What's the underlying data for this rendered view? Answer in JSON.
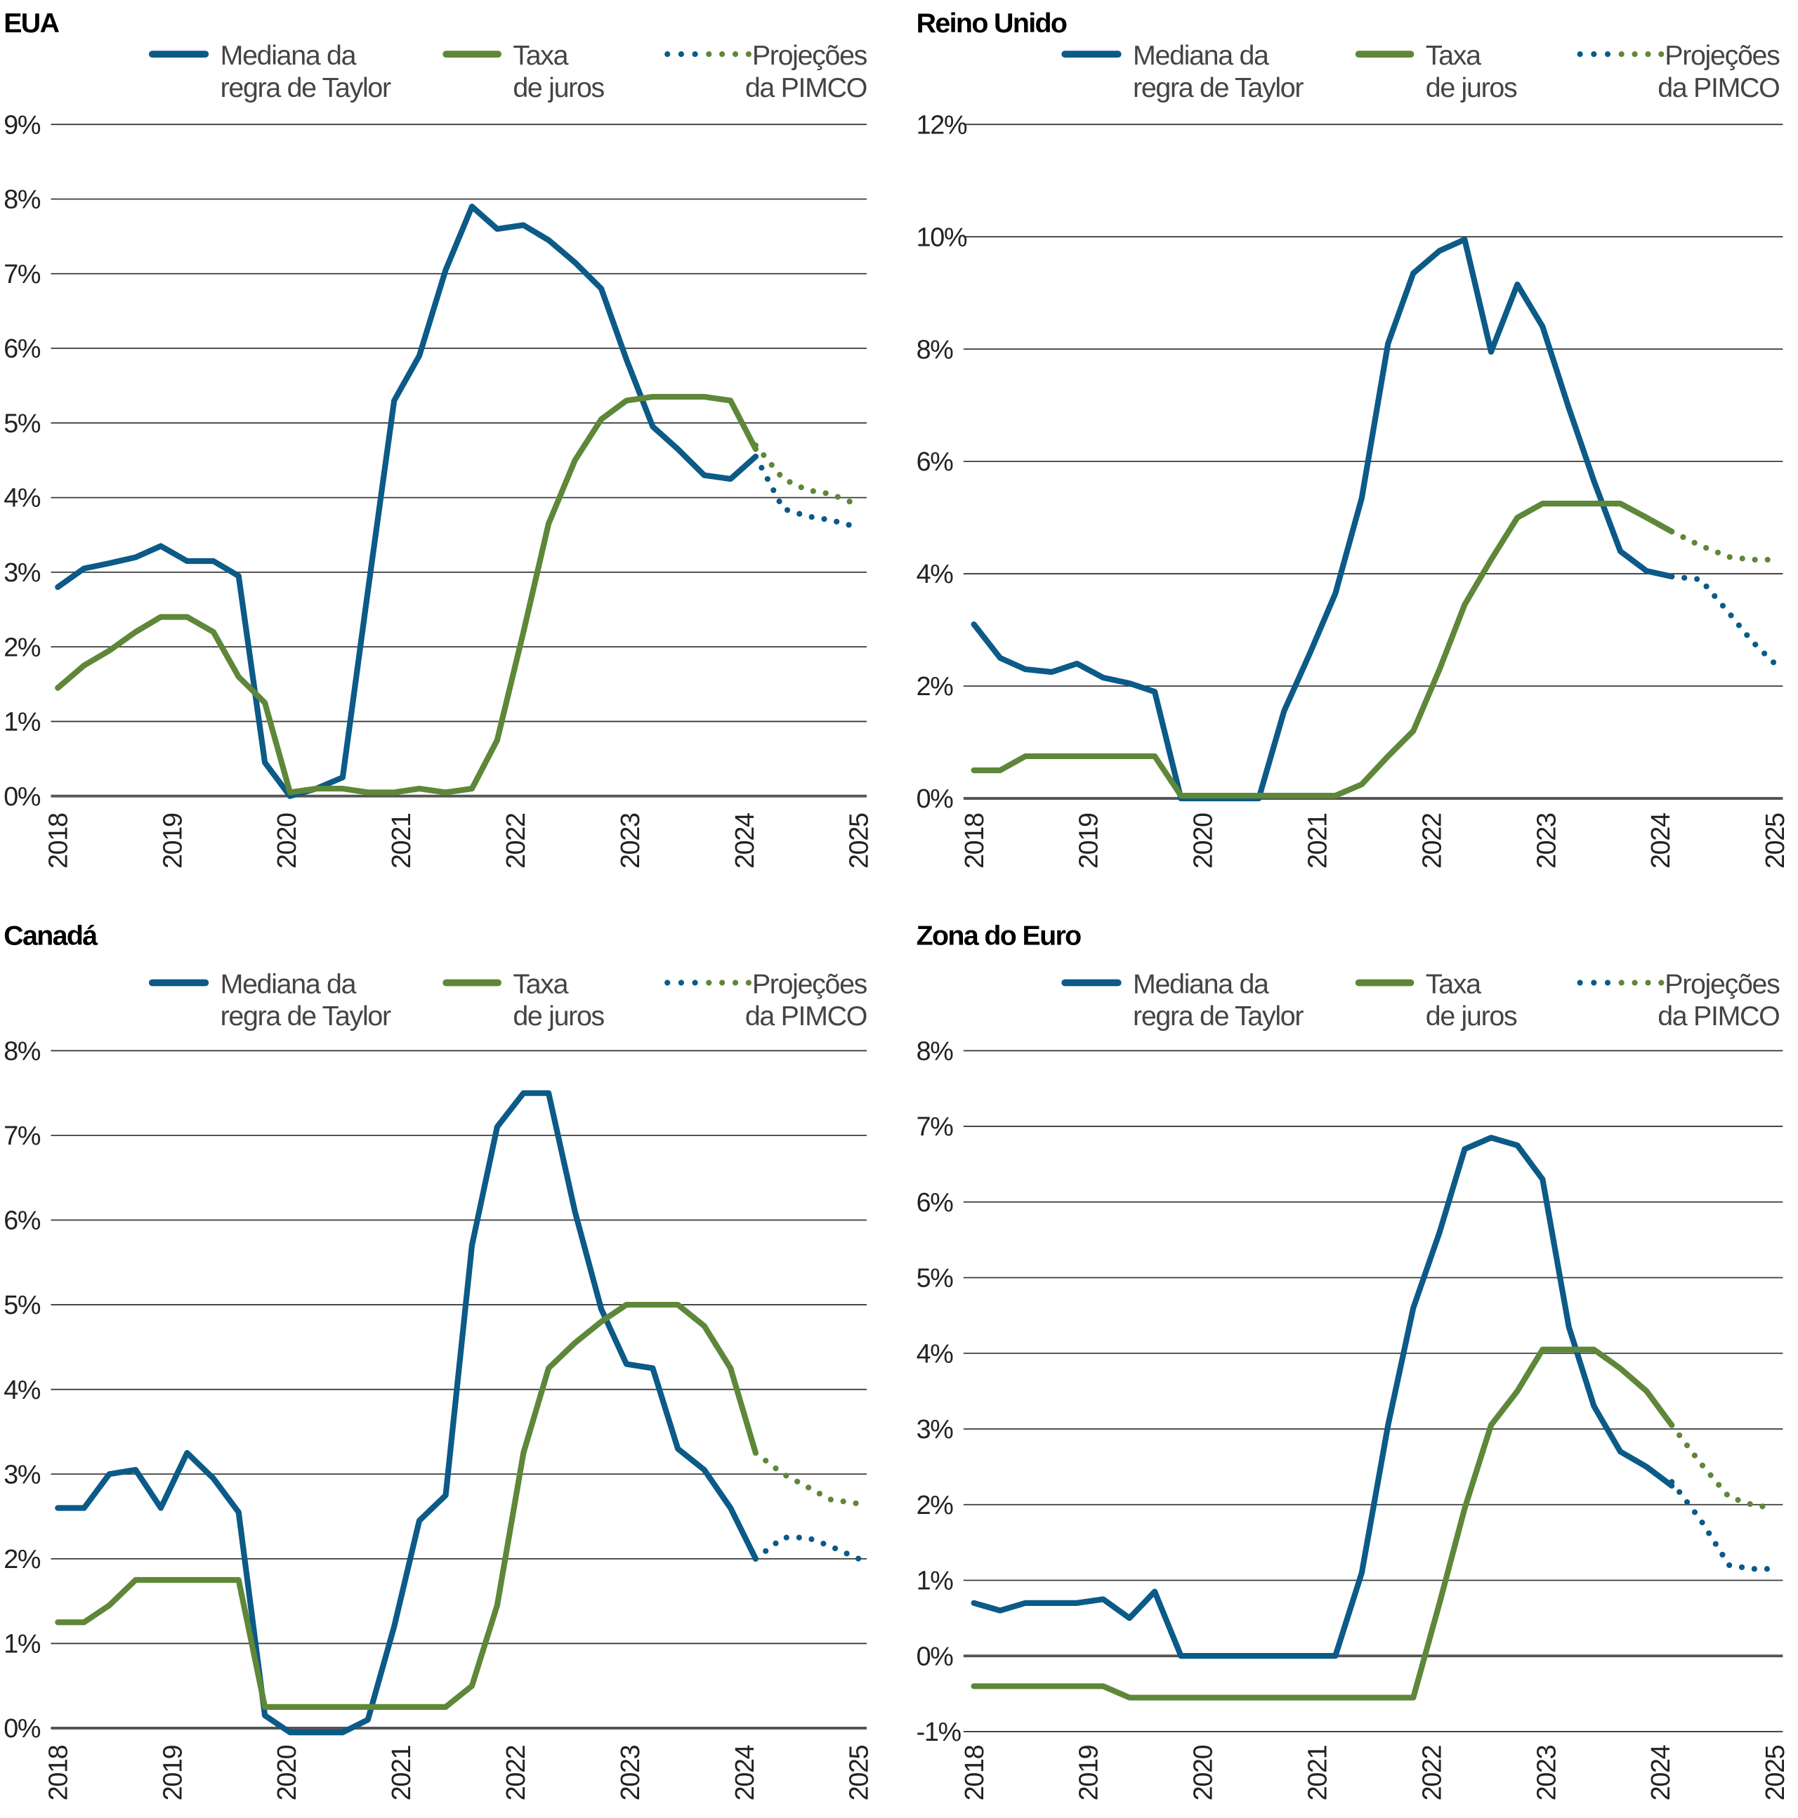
{
  "colors": {
    "taylor": "#0b5a87",
    "rate": "#5e8739",
    "grid": "#3a3a3a",
    "zero": "#555555"
  },
  "legend": [
    {
      "lines": [
        "Mediana da",
        "regra de Taylor"
      ],
      "style": "solid",
      "color": "#0b5a87"
    },
    {
      "lines": [
        "Taxa",
        "de juros"
      ],
      "style": "solid",
      "color": "#5e8739"
    },
    {
      "lines": [
        "Projeções",
        "da PIMCO"
      ],
      "style": "dotted",
      "color": "mixed"
    }
  ],
  "chart_data": [
    {
      "type": "line",
      "title": "EUA",
      "xlim": [
        2018,
        2025
      ],
      "xticks": [
        "2018",
        "2019",
        "2020",
        "2021",
        "2022",
        "2023",
        "2024",
        "2025"
      ],
      "ylim": [
        0,
        9
      ],
      "yticks": [
        0,
        1,
        2,
        3,
        4,
        5,
        6,
        7,
        8,
        9
      ],
      "ytick_labels": [
        "0%",
        "1%",
        "2%",
        "3%",
        "4%",
        "5%",
        "6%",
        "7%",
        "8%",
        "9%"
      ],
      "grid": true,
      "legend_position": "top",
      "series": [
        {
          "name": "Mediana da regra de Taylor",
          "color": "#0b5a87",
          "style": "solid",
          "x": [
            2018,
            2018.23,
            2018.45,
            2018.68,
            2018.9,
            2019.13,
            2019.36,
            2019.58,
            2019.81,
            2020.03,
            2020.26,
            2020.49,
            2020.71,
            2020.94,
            2021.16,
            2021.39,
            2021.62,
            2021.84,
            2022.07,
            2022.29,
            2022.52,
            2022.75,
            2022.97,
            2023.2,
            2023.42,
            2023.65,
            2023.88,
            2024.1
          ],
          "y": [
            2.8,
            3.05,
            3.12,
            3.2,
            3.35,
            3.15,
            3.15,
            2.95,
            0.45,
            0.0,
            0.1,
            0.25,
            2.75,
            5.3,
            5.9,
            7.05,
            7.9,
            7.6,
            7.65,
            7.45,
            7.15,
            6.8,
            5.85,
            4.95,
            4.65,
            4.3,
            4.25,
            4.55
          ]
        },
        {
          "name": "Taxa de juros",
          "color": "#5e8739",
          "style": "solid",
          "x": [
            2018,
            2018.23,
            2018.45,
            2018.68,
            2018.9,
            2019.13,
            2019.36,
            2019.58,
            2019.81,
            2020.03,
            2020.26,
            2020.49,
            2020.71,
            2020.94,
            2021.16,
            2021.39,
            2021.62,
            2021.84,
            2022.07,
            2022.29,
            2022.52,
            2022.75,
            2022.97,
            2023.2,
            2023.42,
            2023.65,
            2023.88,
            2024.1
          ],
          "y": [
            1.45,
            1.75,
            1.95,
            2.2,
            2.4,
            2.4,
            2.2,
            1.6,
            1.25,
            0.05,
            0.1,
            0.1,
            0.05,
            0.05,
            0.1,
            0.05,
            0.1,
            0.75,
            2.2,
            3.65,
            4.5,
            5.05,
            5.3,
            5.35,
            5.35,
            5.35,
            5.3,
            4.65
          ]
        },
        {
          "name": "Projeções da PIMCO (Taylor)",
          "color": "#0b5a87",
          "style": "dotted",
          "x": [
            2024.1,
            2024.22,
            2024.34,
            2024.55,
            2024.75,
            2025.0
          ],
          "y": [
            4.55,
            4.2,
            3.85,
            3.75,
            3.7,
            3.6
          ]
        },
        {
          "name": "Projeções da PIMCO (juros)",
          "color": "#5e8739",
          "style": "dotted",
          "x": [
            2024.1,
            2024.34,
            2024.55,
            2024.75,
            2025.0
          ],
          "y": [
            4.7,
            4.25,
            4.1,
            4.05,
            3.9
          ]
        }
      ]
    },
    {
      "type": "line",
      "title": "Reino Unido",
      "xlim": [
        2018,
        2025
      ],
      "xticks": [
        "2018",
        "2019",
        "2020",
        "2021",
        "2022",
        "2023",
        "2024",
        "2025"
      ],
      "ylim": [
        0,
        12
      ],
      "yticks": [
        0,
        2,
        4,
        6,
        8,
        10,
        12
      ],
      "ytick_labels": [
        "0%",
        "2%",
        "4%",
        "6%",
        "8%",
        "10%",
        "12%"
      ],
      "grid": true,
      "legend_position": "top",
      "series": [
        {
          "name": "Mediana da regra de Taylor",
          "color": "#0b5a87",
          "style": "solid",
          "x": [
            2018,
            2018.23,
            2018.45,
            2018.68,
            2018.9,
            2019.13,
            2019.36,
            2019.58,
            2019.81,
            2020.03,
            2020.26,
            2020.49,
            2020.71,
            2020.94,
            2021.16,
            2021.39,
            2021.62,
            2021.84,
            2022.07,
            2022.29,
            2022.52,
            2022.75,
            2022.97,
            2023.2,
            2023.42,
            2023.65,
            2023.88,
            2024.1
          ],
          "y": [
            3.1,
            2.5,
            2.3,
            2.25,
            2.4,
            2.15,
            2.05,
            1.9,
            0,
            0,
            0,
            0,
            1.55,
            2.6,
            3.65,
            5.35,
            8.1,
            9.35,
            9.75,
            9.95,
            7.95,
            9.15,
            8.4,
            6.95,
            5.65,
            4.4,
            4.05,
            3.95
          ]
        },
        {
          "name": "Taxa de juros",
          "color": "#5e8739",
          "style": "solid",
          "x": [
            2018,
            2018.23,
            2018.45,
            2018.68,
            2018.9,
            2019.13,
            2019.36,
            2019.58,
            2019.81,
            2020.03,
            2020.26,
            2020.49,
            2020.71,
            2020.94,
            2021.16,
            2021.39,
            2021.62,
            2021.84,
            2022.07,
            2022.29,
            2022.52,
            2022.75,
            2022.97,
            2023.2,
            2023.42,
            2023.65,
            2023.88,
            2024.1
          ],
          "y": [
            0.5,
            0.5,
            0.75,
            0.75,
            0.75,
            0.75,
            0.75,
            0.75,
            0.05,
            0.05,
            0.05,
            0.05,
            0.05,
            0.05,
            0.05,
            0.25,
            0.75,
            1.2,
            2.3,
            3.45,
            4.25,
            5.0,
            5.25,
            5.25,
            5.25,
            5.25,
            5.0,
            4.75
          ]
        },
        {
          "name": "Projeções da PIMCO (Taylor)",
          "color": "#0b5a87",
          "style": "dotted",
          "x": [
            2024.1,
            2024.35,
            2024.6,
            2024.8,
            2025.0
          ],
          "y": [
            3.95,
            3.9,
            3.3,
            2.8,
            2.4
          ]
        },
        {
          "name": "Projeções da PIMCO (juros)",
          "color": "#5e8739",
          "style": "dotted",
          "x": [
            2024.1,
            2024.35,
            2024.6,
            2024.8,
            2025.0
          ],
          "y": [
            4.75,
            4.5,
            4.3,
            4.25,
            4.25
          ]
        }
      ]
    },
    {
      "type": "line",
      "title": "Canadá",
      "xlim": [
        2018,
        2025
      ],
      "xticks": [
        "2018",
        "2019",
        "2020",
        "2021",
        "2022",
        "2023",
        "2024",
        "2025"
      ],
      "ylim": [
        0,
        8
      ],
      "yticks": [
        0,
        1,
        2,
        3,
        4,
        5,
        6,
        7,
        8
      ],
      "ytick_labels": [
        "0%",
        "1%",
        "2%",
        "3%",
        "4%",
        "5%",
        "6%",
        "7%",
        "8%"
      ],
      "grid": true,
      "legend_position": "top",
      "series": [
        {
          "name": "Mediana da regra de Taylor",
          "color": "#0b5a87",
          "style": "solid",
          "x": [
            2018,
            2018.23,
            2018.45,
            2018.68,
            2018.9,
            2019.13,
            2019.36,
            2019.58,
            2019.81,
            2020.03,
            2020.26,
            2020.49,
            2020.71,
            2020.94,
            2021.16,
            2021.39,
            2021.62,
            2021.84,
            2022.07,
            2022.29,
            2022.52,
            2022.75,
            2022.97,
            2023.2,
            2023.42,
            2023.65,
            2023.88,
            2024.1
          ],
          "y": [
            2.6,
            2.6,
            3.0,
            3.05,
            2.6,
            3.25,
            2.95,
            2.55,
            0.15,
            -0.05,
            -0.05,
            -0.05,
            0.1,
            1.2,
            2.45,
            2.75,
            5.7,
            7.1,
            7.5,
            7.5,
            6.1,
            4.95,
            4.3,
            4.25,
            3.3,
            3.05,
            2.6,
            2.0
          ]
        },
        {
          "name": "Taxa de juros",
          "color": "#5e8739",
          "style": "solid",
          "x": [
            2018,
            2018.23,
            2018.45,
            2018.68,
            2018.9,
            2019.13,
            2019.36,
            2019.58,
            2019.81,
            2020.03,
            2020.26,
            2020.49,
            2020.71,
            2020.94,
            2021.16,
            2021.39,
            2021.62,
            2021.84,
            2022.07,
            2022.29,
            2022.52,
            2022.75,
            2022.97,
            2023.2,
            2023.42,
            2023.65,
            2023.88,
            2024.1
          ],
          "y": [
            1.25,
            1.25,
            1.45,
            1.75,
            1.75,
            1.75,
            1.75,
            1.75,
            0.25,
            0.25,
            0.25,
            0.25,
            0.25,
            0.25,
            0.25,
            0.25,
            0.5,
            1.45,
            3.25,
            4.25,
            4.55,
            4.8,
            5.0,
            5.0,
            5.0,
            4.75,
            4.25,
            3.25
          ]
        },
        {
          "name": "Projeções da PIMCO (Taylor)",
          "color": "#0b5a87",
          "style": "dotted",
          "x": [
            2024.1,
            2024.34,
            2024.55,
            2024.75,
            2025.0
          ],
          "y": [
            2.0,
            2.25,
            2.25,
            2.15,
            2.0
          ]
        },
        {
          "name": "Projeções da PIMCO (juros)",
          "color": "#5e8739",
          "style": "dotted",
          "x": [
            2024.1,
            2024.34,
            2024.55,
            2024.75,
            2025.0
          ],
          "y": [
            3.25,
            3.0,
            2.85,
            2.7,
            2.65
          ]
        }
      ]
    },
    {
      "type": "line",
      "title": "Zona do Euro",
      "xlim": [
        2018,
        2025
      ],
      "xticks": [
        "2018",
        "2019",
        "2020",
        "2021",
        "2022",
        "2023",
        "2024",
        "2025"
      ],
      "ylim": [
        -1,
        8
      ],
      "yticks": [
        -1,
        0,
        1,
        2,
        3,
        4,
        5,
        6,
        7,
        8
      ],
      "ytick_labels": [
        "-1%",
        "0%",
        "1%",
        "2%",
        "3%",
        "4%",
        "5%",
        "6%",
        "7%",
        "8%"
      ],
      "grid": true,
      "legend_position": "top",
      "series": [
        {
          "name": "Mediana da regra de Taylor",
          "color": "#0b5a87",
          "style": "solid",
          "x": [
            2018,
            2018.23,
            2018.45,
            2018.68,
            2018.9,
            2019.13,
            2019.36,
            2019.58,
            2019.81,
            2020.03,
            2020.26,
            2020.49,
            2020.71,
            2020.94,
            2021.16,
            2021.39,
            2021.62,
            2021.84,
            2022.07,
            2022.29,
            2022.52,
            2022.75,
            2022.97,
            2023.2,
            2023.42,
            2023.65,
            2023.88,
            2024.1
          ],
          "y": [
            0.7,
            0.6,
            0.7,
            0.7,
            0.7,
            0.75,
            0.5,
            0.85,
            0,
            0,
            0,
            0,
            0,
            0,
            0,
            1.1,
            3.05,
            4.6,
            5.6,
            6.7,
            6.85,
            6.75,
            6.3,
            4.35,
            3.3,
            2.7,
            2.5,
            2.25
          ]
        },
        {
          "name": "Taxa de juros",
          "color": "#5e8739",
          "style": "solid",
          "x": [
            2018,
            2018.23,
            2018.45,
            2018.68,
            2018.9,
            2019.13,
            2019.36,
            2019.58,
            2019.81,
            2020.03,
            2020.26,
            2020.49,
            2020.71,
            2020.94,
            2021.16,
            2021.39,
            2021.62,
            2021.84,
            2022.07,
            2022.29,
            2022.52,
            2022.75,
            2022.97,
            2023.2,
            2023.42,
            2023.65,
            2023.88,
            2024.1
          ],
          "y": [
            -0.4,
            -0.4,
            -0.4,
            -0.4,
            -0.4,
            -0.4,
            -0.55,
            -0.55,
            -0.55,
            -0.55,
            -0.55,
            -0.55,
            -0.55,
            -0.55,
            -0.55,
            -0.55,
            -0.55,
            -0.55,
            0.7,
            1.95,
            3.05,
            3.5,
            4.05,
            4.05,
            4.05,
            3.8,
            3.5,
            3.05
          ]
        },
        {
          "name": "Projeções da PIMCO (Taylor)",
          "color": "#0b5a87",
          "style": "dotted",
          "x": [
            2024.1,
            2024.35,
            2024.6,
            2024.8,
            2025.0
          ],
          "y": [
            2.3,
            1.8,
            1.2,
            1.15,
            1.15
          ]
        },
        {
          "name": "Projeções da PIMCO (juros)",
          "color": "#5e8739",
          "style": "dotted",
          "x": [
            2024.1,
            2024.35,
            2024.6,
            2024.8,
            2025.0
          ],
          "y": [
            3.05,
            2.55,
            2.1,
            2.0,
            1.95
          ]
        }
      ]
    }
  ]
}
